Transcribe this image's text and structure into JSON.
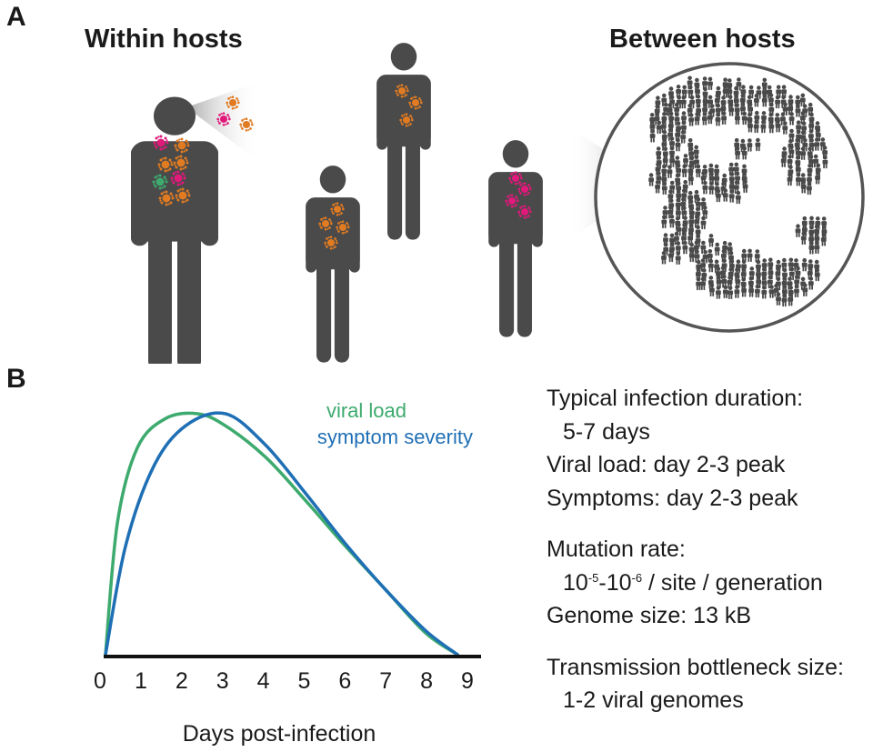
{
  "panel_a": {
    "letter": "A",
    "within_label": "Within hosts",
    "between_label": "Between hosts",
    "colors": {
      "person": "#4a4a4a",
      "virus_orange": "#e07b22",
      "virus_pink": "#e0197b",
      "virus_green": "#3daa6e",
      "globe_stroke": "#555555"
    }
  },
  "panel_b": {
    "letter": "B",
    "chart_data": {
      "type": "line",
      "x_ticks": [
        "0",
        "1",
        "2",
        "3",
        "4",
        "5",
        "6",
        "7",
        "8",
        "9"
      ],
      "xlabel": "Days post-infection",
      "xlim": [
        0,
        9
      ],
      "ylabel": "",
      "series": [
        {
          "name": "viral load",
          "color": "#3daa6e",
          "points": [
            [
              0,
              0
            ],
            [
              0.3,
              0.55
            ],
            [
              0.8,
              0.86
            ],
            [
              1.5,
              0.98
            ],
            [
              2.3,
              1.0
            ],
            [
              3.0,
              0.95
            ],
            [
              4.0,
              0.82
            ],
            [
              5.0,
              0.64
            ],
            [
              6.0,
              0.45
            ],
            [
              7.0,
              0.27
            ],
            [
              8.0,
              0.09
            ],
            [
              8.8,
              0.0
            ]
          ]
        },
        {
          "name": "symptom severity",
          "color": "#1f6fb5",
          "points": [
            [
              0,
              0
            ],
            [
              0.5,
              0.45
            ],
            [
              1.2,
              0.78
            ],
            [
              2.0,
              0.95
            ],
            [
              3.0,
              1.0
            ],
            [
              4.0,
              0.87
            ],
            [
              5.0,
              0.67
            ],
            [
              6.0,
              0.46
            ],
            [
              7.0,
              0.27
            ],
            [
              8.0,
              0.1
            ],
            [
              8.8,
              0.0
            ]
          ]
        }
      ]
    },
    "facts": {
      "duration_label": "Typical infection duration:",
      "duration_value": "5-7 days",
      "viral_load": "Viral load: day 2-3 peak",
      "symptoms": "Symptoms: day 2-3 peak",
      "mutation_label": "Mutation rate:",
      "mutation_base1": "10",
      "mutation_exp1": "-5",
      "mutation_sep": "-",
      "mutation_base2": "10",
      "mutation_exp2": "-6",
      "mutation_unit": " / site / generation",
      "genome": "Genome size: 13 kB",
      "bottleneck_label": "Transmission bottleneck size:",
      "bottleneck_value": "1-2 viral genomes"
    }
  }
}
